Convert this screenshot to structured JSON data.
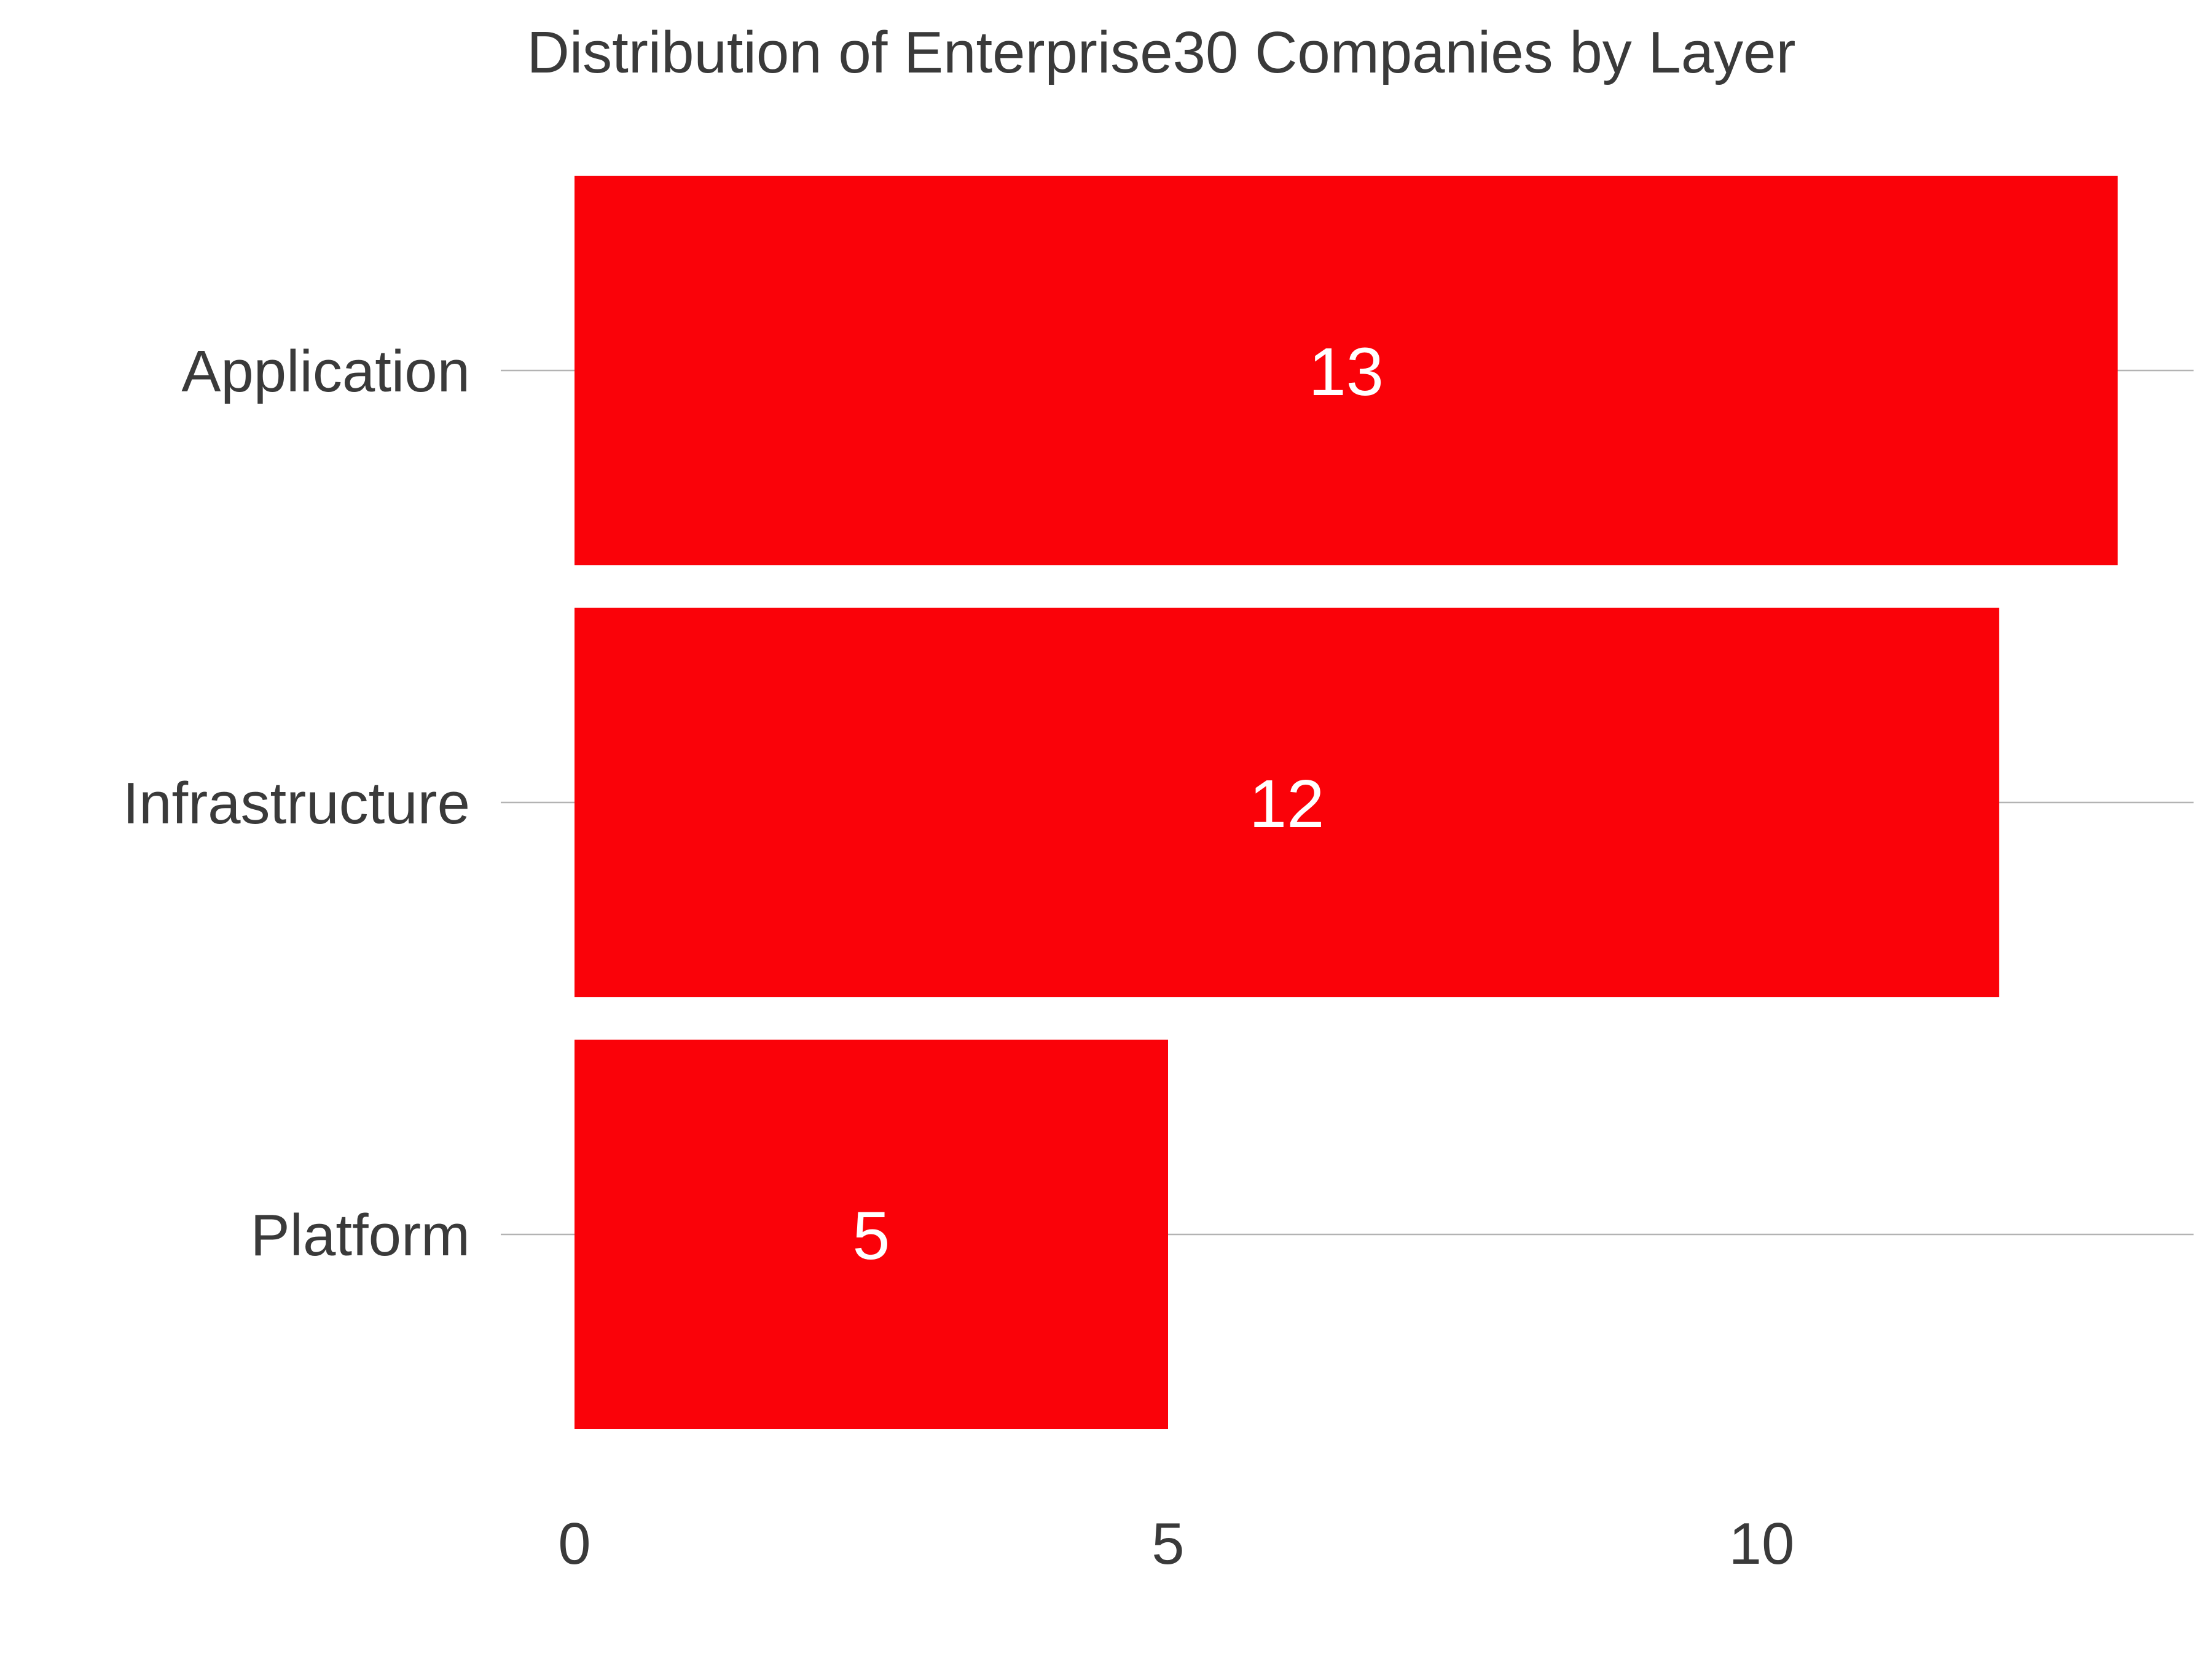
{
  "chart_data": {
    "type": "bar",
    "orientation": "horizontal",
    "title": "Distribution of Enterprise30 Companies by Layer",
    "xlabel": "",
    "ylabel": "",
    "categories": [
      "Application",
      "Infrastructure",
      "Platform"
    ],
    "values": [
      13,
      12,
      5
    ],
    "data_labels": [
      "13",
      "12",
      "5"
    ],
    "xticks": [
      0,
      5,
      10
    ],
    "xtick_labels": [
      "0",
      "5",
      "10"
    ],
    "xlim": [
      0,
      13.7
    ],
    "grid": "horizontal lines at category centers",
    "legend": "none",
    "bar_color": "#fa0209",
    "text_color": "#3a3a3a",
    "gridline_color": "#b3b3b3",
    "data_label_color": "#ffffff"
  }
}
